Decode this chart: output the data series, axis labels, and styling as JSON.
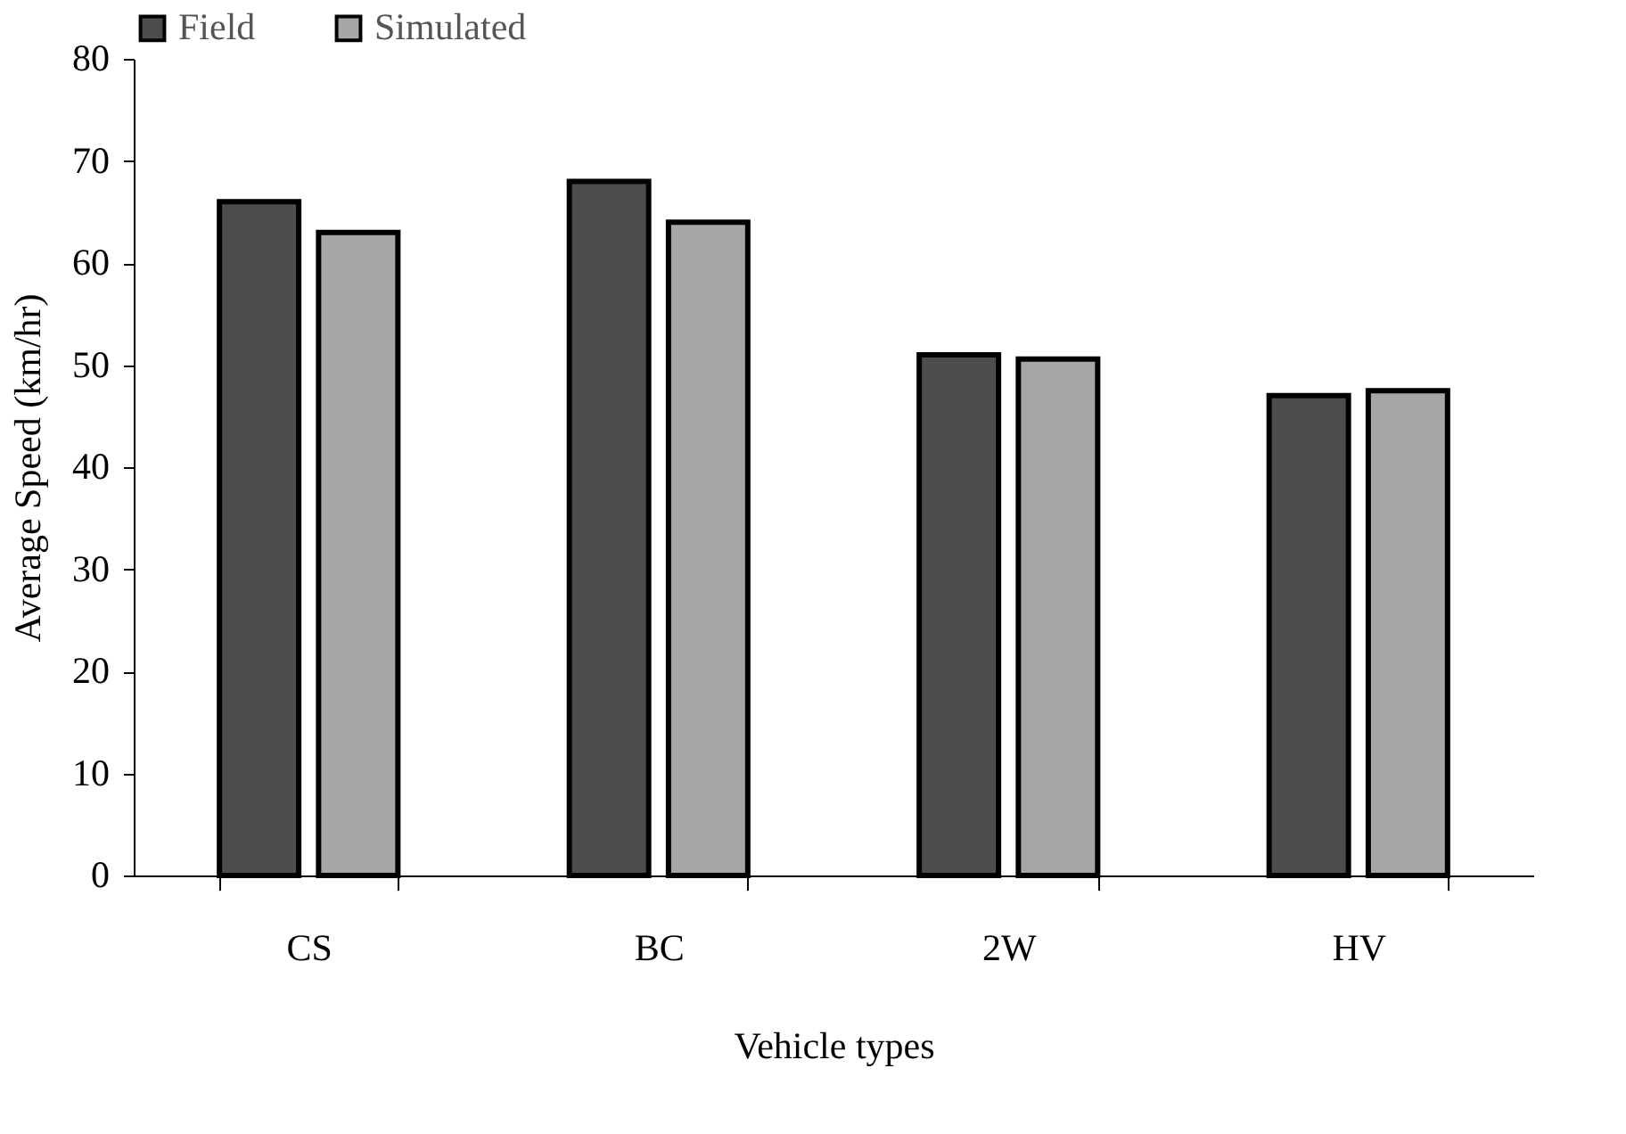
{
  "chart_data": {
    "type": "bar",
    "xlabel": "Vehicle types",
    "ylabel": "Average Speed (km/hr)",
    "categories": [
      "CS",
      "BC",
      "2W",
      "HV"
    ],
    "series": [
      {
        "name": "Field",
        "color": "#4d4d4d",
        "values": [
          66,
          68,
          51,
          47
        ]
      },
      {
        "name": "Simulated",
        "color": "#a6a6a6",
        "values": [
          63,
          64,
          50.6,
          47.5
        ]
      }
    ],
    "ylim": [
      0,
      80
    ],
    "yticks": [
      0,
      10,
      20,
      30,
      40,
      50,
      60,
      70,
      80
    ],
    "grid": false,
    "legend": "top"
  }
}
